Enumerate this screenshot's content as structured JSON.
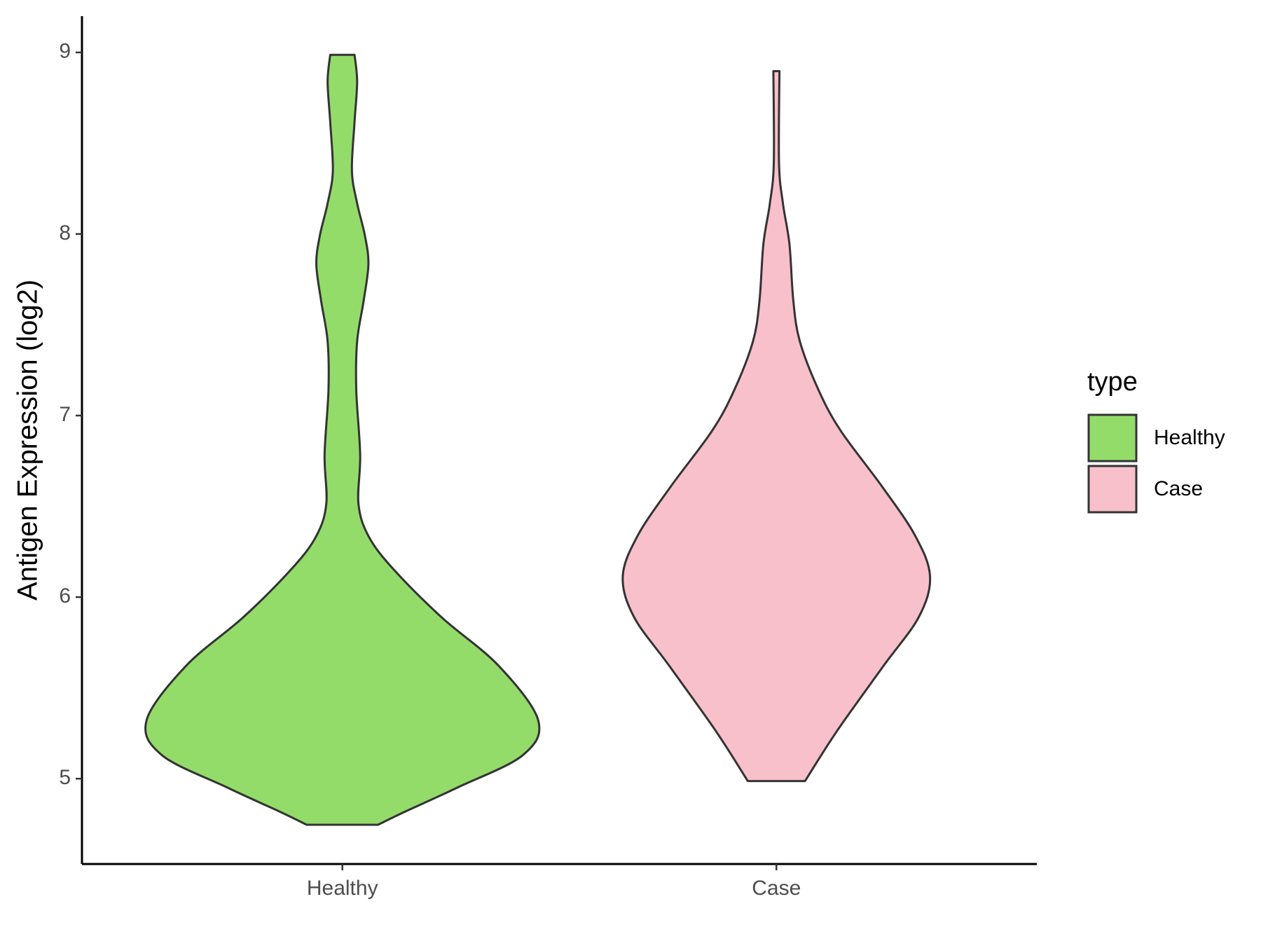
{
  "chart_data": {
    "type": "violin",
    "ylabel": "Antigen Expression (log2)",
    "legend_title": "type",
    "categories": [
      "Healthy",
      "Case"
    ],
    "xlim": [
      0.4,
      2.6
    ],
    "ylim": [
      4.53,
      9.2
    ],
    "yticks": [
      5,
      6,
      7,
      8,
      9
    ],
    "series": [
      {
        "name": "Healthy",
        "color": "#93dc6a",
        "y": [
          8.987,
          8.839,
          8.616,
          8.347,
          8.169,
          7.99,
          7.833,
          7.632,
          7.409,
          7.141,
          6.783,
          6.515,
          6.337,
          6.158,
          5.89,
          5.622,
          5.323,
          5.13,
          4.952,
          4.818,
          4.746
        ],
        "half_width": [
          0.028,
          0.034,
          0.028,
          0.022,
          0.034,
          0.052,
          0.06,
          0.049,
          0.034,
          0.032,
          0.041,
          0.037,
          0.06,
          0.116,
          0.228,
          0.36,
          0.451,
          0.416,
          0.266,
          0.144,
          0.082
        ]
      },
      {
        "name": "Case",
        "color": "#f8c0cb",
        "y": [
          8.897,
          8.392,
          8.169,
          7.945,
          7.632,
          7.409,
          7.141,
          6.917,
          6.604,
          6.337,
          6.113,
          5.89,
          5.622,
          5.264,
          4.987
        ],
        "half_width": [
          0.007,
          0.006,
          0.015,
          0.03,
          0.039,
          0.054,
          0.097,
          0.148,
          0.245,
          0.32,
          0.354,
          0.328,
          0.247,
          0.14,
          0.066
        ]
      }
    ]
  }
}
